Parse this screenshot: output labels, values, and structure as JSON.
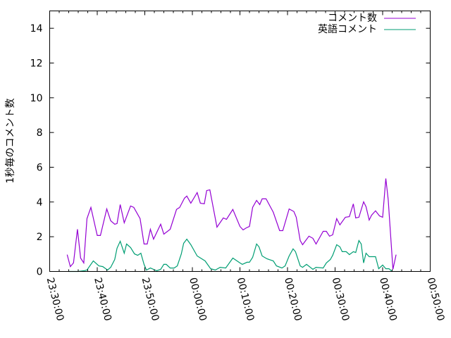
{
  "chart_data": {
    "type": "line",
    "title": "",
    "xlabel": "",
    "ylabel": "1秒毎のコメント数",
    "xlim": [
      "23:30:00",
      "00:50:00"
    ],
    "ylim": [
      0,
      15
    ],
    "x_ticks": [
      "23:30:00",
      "23:40:00",
      "23:50:00",
      "00:00:00",
      "00:10:00",
      "00:20:00",
      "00:30:00",
      "00:40:00",
      "00:50:00"
    ],
    "y_ticks": [
      "0",
      "2",
      "4",
      "6",
      "8",
      "10",
      "12",
      "14"
    ],
    "grid": false,
    "legend_position": "top-right",
    "series": [
      {
        "name": "コメント数",
        "color": "#9400d3",
        "points": [
          [
            "23:33:40",
            0.97
          ],
          [
            "23:34:20",
            0.28
          ],
          [
            "23:35:00",
            0.49
          ],
          [
            "23:35:50",
            2.43
          ],
          [
            "23:36:30",
            0.77
          ],
          [
            "23:37:10",
            0.49
          ],
          [
            "23:37:50",
            3.04
          ],
          [
            "23:38:40",
            3.69
          ],
          [
            "23:40:00",
            2.07
          ],
          [
            "23:40:40",
            2.07
          ],
          [
            "23:42:00",
            3.6
          ],
          [
            "23:42:50",
            2.92
          ],
          [
            "23:43:40",
            2.72
          ],
          [
            "23:44:10",
            2.76
          ],
          [
            "23:44:50",
            3.85
          ],
          [
            "23:45:40",
            2.8
          ],
          [
            "23:47:00",
            3.77
          ],
          [
            "23:47:40",
            3.69
          ],
          [
            "23:49:00",
            3.04
          ],
          [
            "23:49:50",
            1.58
          ],
          [
            "23:50:30",
            1.58
          ],
          [
            "23:51:10",
            2.43
          ],
          [
            "23:51:50",
            1.86
          ],
          [
            "23:53:20",
            2.72
          ],
          [
            "23:54:00",
            2.15
          ],
          [
            "23:55:20",
            2.43
          ],
          [
            "23:56:40",
            3.57
          ],
          [
            "23:57:20",
            3.69
          ],
          [
            "23:58:20",
            4.22
          ],
          [
            "23:58:50",
            4.34
          ],
          [
            "23:59:40",
            3.93
          ],
          [
            "00:01:00",
            4.54
          ],
          [
            "00:01:40",
            3.93
          ],
          [
            "00:02:30",
            3.89
          ],
          [
            "00:03:00",
            4.66
          ],
          [
            "00:03:40",
            4.7
          ],
          [
            "00:05:10",
            2.55
          ],
          [
            "00:06:30",
            3.08
          ],
          [
            "00:07:10",
            3.0
          ],
          [
            "00:08:30",
            3.57
          ],
          [
            "00:10:00",
            2.59
          ],
          [
            "00:10:40",
            2.39
          ],
          [
            "00:11:20",
            2.51
          ],
          [
            "00:12:00",
            2.59
          ],
          [
            "00:12:40",
            3.69
          ],
          [
            "00:13:30",
            4.09
          ],
          [
            "00:14:10",
            3.85
          ],
          [
            "00:14:40",
            4.18
          ],
          [
            "00:15:30",
            4.18
          ],
          [
            "00:17:00",
            3.41
          ],
          [
            "00:18:20",
            2.35
          ],
          [
            "00:19:00",
            2.35
          ],
          [
            "00:20:20",
            3.6
          ],
          [
            "00:21:20",
            3.45
          ],
          [
            "00:21:50",
            3.12
          ],
          [
            "00:22:40",
            1.78
          ],
          [
            "00:23:10",
            1.54
          ],
          [
            "00:24:30",
            2.03
          ],
          [
            "00:25:20",
            1.91
          ],
          [
            "00:26:00",
            1.58
          ],
          [
            "00:27:30",
            2.31
          ],
          [
            "00:28:10",
            2.31
          ],
          [
            "00:28:50",
            2.03
          ],
          [
            "00:29:30",
            2.11
          ],
          [
            "00:30:20",
            3.04
          ],
          [
            "00:31:00",
            2.68
          ],
          [
            "00:32:10",
            3.12
          ],
          [
            "00:33:00",
            3.16
          ],
          [
            "00:33:50",
            3.89
          ],
          [
            "00:34:20",
            3.08
          ],
          [
            "00:35:00",
            3.12
          ],
          [
            "00:36:00",
            4.01
          ],
          [
            "00:36:30",
            3.73
          ],
          [
            "00:37:10",
            2.96
          ],
          [
            "00:37:40",
            3.24
          ],
          [
            "00:38:30",
            3.49
          ],
          [
            "00:39:20",
            3.2
          ],
          [
            "00:40:00",
            3.12
          ],
          [
            "00:40:40",
            5.35
          ],
          [
            "00:41:10",
            4.13
          ],
          [
            "00:42:10",
            0.12
          ],
          [
            "00:42:50",
            0.97
          ]
        ]
      },
      {
        "name": "英語コメント",
        "color": "#009e73",
        "points": [
          [
            "23:34:00",
            0
          ],
          [
            "23:36:00",
            0
          ],
          [
            "23:37:20",
            0.05
          ],
          [
            "23:37:50",
            0.08
          ],
          [
            "23:39:10",
            0.61
          ],
          [
            "23:40:20",
            0.32
          ],
          [
            "23:41:10",
            0.28
          ],
          [
            "23:42:10",
            0.08
          ],
          [
            "23:42:50",
            0.24
          ],
          [
            "23:43:40",
            0.69
          ],
          [
            "23:44:10",
            1.34
          ],
          [
            "23:44:50",
            1.74
          ],
          [
            "23:45:40",
            1.05
          ],
          [
            "23:46:10",
            1.58
          ],
          [
            "23:47:00",
            1.38
          ],
          [
            "23:47:50",
            1.01
          ],
          [
            "23:48:30",
            0.93
          ],
          [
            "23:49:10",
            1.05
          ],
          [
            "23:49:50",
            0.41
          ],
          [
            "23:50:20",
            0.08
          ],
          [
            "23:51:10",
            0.2
          ],
          [
            "23:52:30",
            0.04
          ],
          [
            "23:53:20",
            0.12
          ],
          [
            "23:54:00",
            0.41
          ],
          [
            "23:54:30",
            0.41
          ],
          [
            "23:55:20",
            0.2
          ],
          [
            "23:56:10",
            0.2
          ],
          [
            "23:56:50",
            0.32
          ],
          [
            "23:57:40",
            1.01
          ],
          [
            "23:58:10",
            1.62
          ],
          [
            "23:58:50",
            1.86
          ],
          [
            "23:59:40",
            1.54
          ],
          [
            "00:01:00",
            0.89
          ],
          [
            "00:02:40",
            0.61
          ],
          [
            "00:03:50",
            0.16
          ],
          [
            "00:04:50",
            0.08
          ],
          [
            "00:05:50",
            0.24
          ],
          [
            "00:07:00",
            0.2
          ],
          [
            "00:08:30",
            0.77
          ],
          [
            "00:10:00",
            0.49
          ],
          [
            "00:10:30",
            0.41
          ],
          [
            "00:11:30",
            0.53
          ],
          [
            "00:12:00",
            0.53
          ],
          [
            "00:12:40",
            0.81
          ],
          [
            "00:13:30",
            1.58
          ],
          [
            "00:14:00",
            1.42
          ],
          [
            "00:14:40",
            0.89
          ],
          [
            "00:15:40",
            0.73
          ],
          [
            "00:17:00",
            0.61
          ],
          [
            "00:17:40",
            0.32
          ],
          [
            "00:18:50",
            0.2
          ],
          [
            "00:19:30",
            0.32
          ],
          [
            "00:20:20",
            0.89
          ],
          [
            "00:21:10",
            1.3
          ],
          [
            "00:21:40",
            1.14
          ],
          [
            "00:22:40",
            0.32
          ],
          [
            "00:23:10",
            0.24
          ],
          [
            "00:24:00",
            0.41
          ],
          [
            "00:25:20",
            0.12
          ],
          [
            "00:26:00",
            0.24
          ],
          [
            "00:27:30",
            0.2
          ],
          [
            "00:28:10",
            0.49
          ],
          [
            "00:29:00",
            0.69
          ],
          [
            "00:29:30",
            0.93
          ],
          [
            "00:30:20",
            1.54
          ],
          [
            "00:31:00",
            1.42
          ],
          [
            "00:31:30",
            1.14
          ],
          [
            "00:32:20",
            1.14
          ],
          [
            "00:33:00",
            0.97
          ],
          [
            "00:33:50",
            1.14
          ],
          [
            "00:34:20",
            1.09
          ],
          [
            "00:35:00",
            1.78
          ],
          [
            "00:35:30",
            1.58
          ],
          [
            "00:36:00",
            0.49
          ],
          [
            "00:36:30",
            1.05
          ],
          [
            "00:37:10",
            0.85
          ],
          [
            "00:38:30",
            0.85
          ],
          [
            "00:39:10",
            0.16
          ],
          [
            "00:40:00",
            0.37
          ],
          [
            "00:40:40",
            0.16
          ],
          [
            "00:41:20",
            0.16
          ],
          [
            "00:42:00",
            0
          ]
        ]
      }
    ]
  }
}
